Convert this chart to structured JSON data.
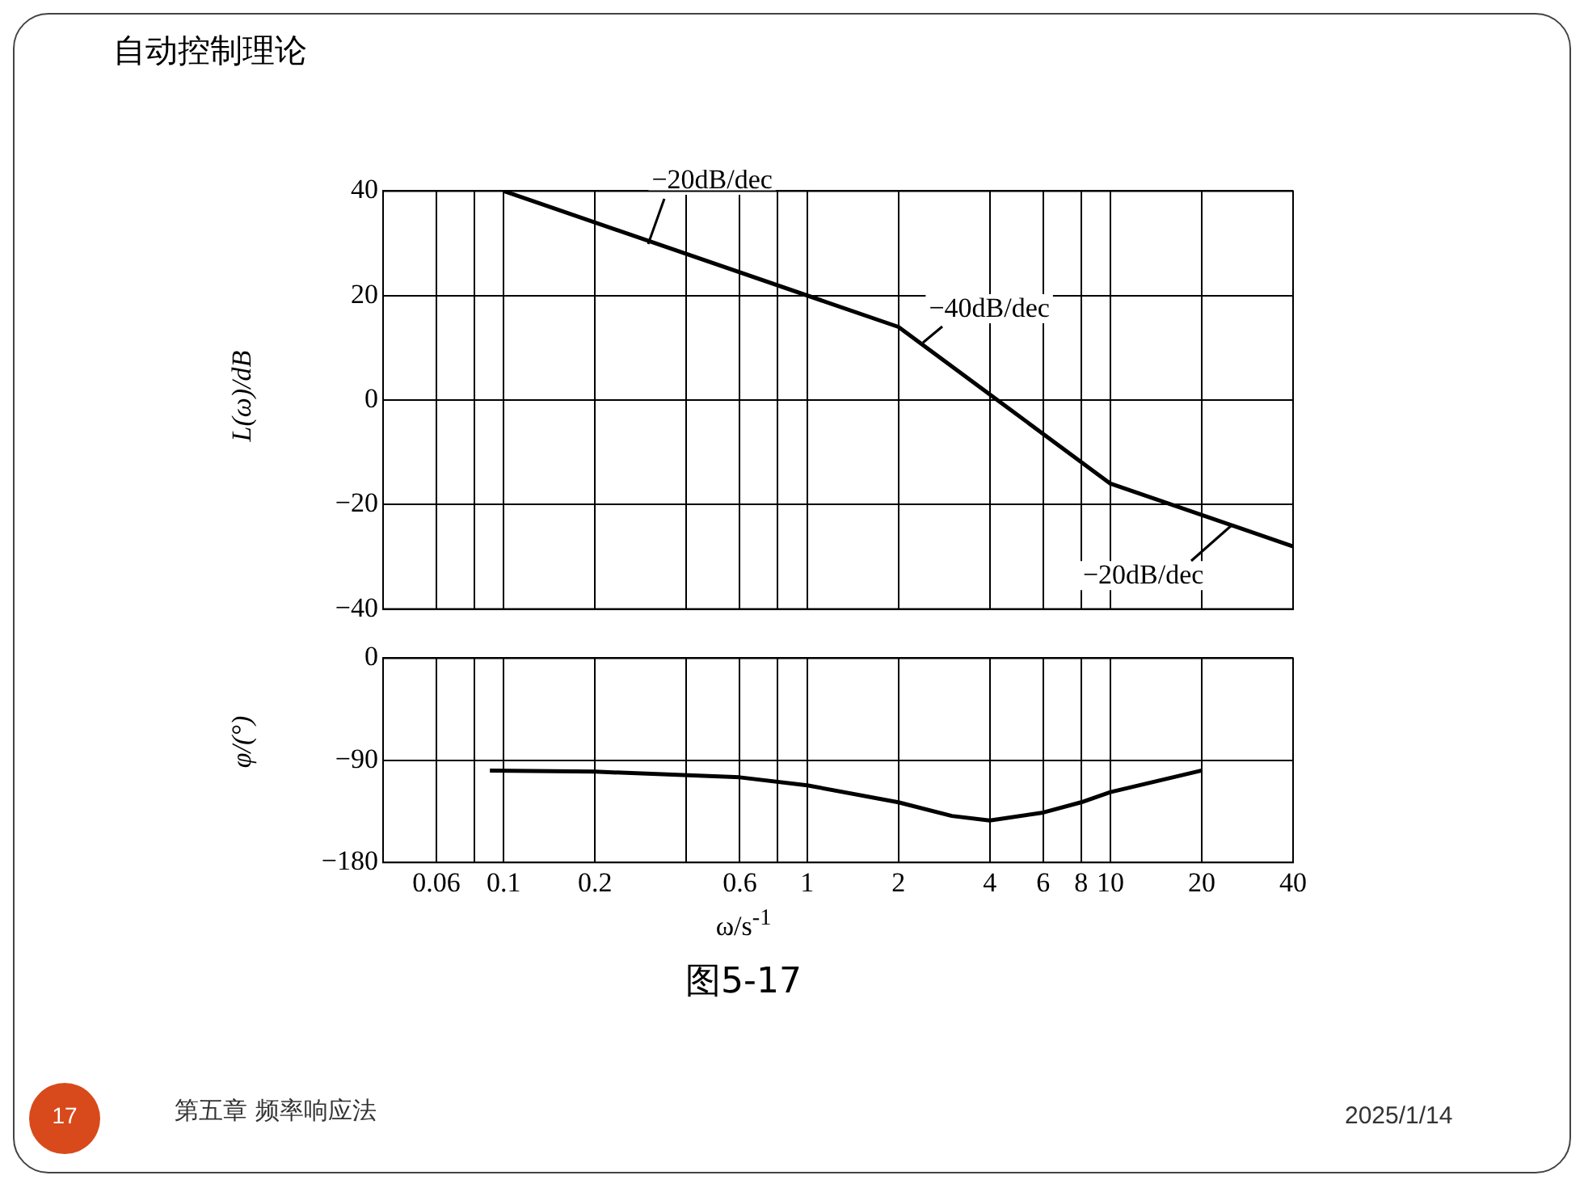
{
  "chart_data": [
    {
      "type": "line",
      "title": "自动控制理论",
      "ylabel": "L(ω)/dB",
      "log": "x",
      "grid": true,
      "legend": false,
      "marker": "none",
      "line_style": "solid",
      "tick_labels": "y",
      "xlim": [
        0.04,
        40
      ],
      "xticks": [
        0.06,
        {
          "value": 0.08,
          "label": null
        },
        0.1,
        0.2,
        {
          "value": 0.4,
          "label": null
        },
        0.6,
        {
          "value": 0.8,
          "label": null
        },
        1,
        2,
        4,
        6,
        8,
        10,
        20,
        40
      ],
      "ylim": [
        -40,
        40
      ],
      "yticks": [
        {
          "value": -40,
          "label": "−40"
        },
        {
          "value": -20,
          "label": "−20"
        },
        0,
        20,
        40
      ],
      "x": [
        0.1,
        2,
        10,
        40
      ],
      "series": [
        {
          "color": "#000000",
          "values": [
            40,
            14,
            -16,
            -28
          ]
        }
      ],
      "annotations": [
        {
          "text": "−20dB/dec",
          "x": 0.3,
          "y": 30
        },
        {
          "text": "−40dB/dec",
          "x": 2.4,
          "y": 11
        },
        {
          "text": "−20dB/dec",
          "x": 25,
          "y": -24
        }
      ]
    },
    {
      "type": "line",
      "xlabel": "ω/s$^{-1}$",
      "ylabel": "φ/(°)",
      "log": "x",
      "grid": true,
      "legend": false,
      "marker": "none",
      "line_style": "solid",
      "xlim": [
        0.04,
        40
      ],
      "xticks": [
        {
          "value": 0.06,
          "label": "0.06"
        },
        {
          "value": 0.08,
          "label": null
        },
        {
          "value": 0.1,
          "label": "0.1"
        },
        {
          "value": 0.2,
          "label": "0.2"
        },
        {
          "value": 0.4,
          "label": null
        },
        {
          "value": 0.6,
          "label": "0.6"
        },
        {
          "value": 0.8,
          "label": null
        },
        {
          "value": 1,
          "label": "1"
        },
        {
          "value": 2,
          "label": "2"
        },
        {
          "value": 4,
          "label": "4"
        },
        {
          "value": 6,
          "label": "6"
        },
        {
          "value": 8,
          "label": "8"
        },
        {
          "value": 10,
          "label": "10"
        },
        {
          "value": 20,
          "label": "20"
        },
        {
          "value": 40,
          "label": "40"
        }
      ],
      "ylim": [
        -180,
        0
      ],
      "yticks": [
        {
          "value": -180,
          "label": "−180"
        },
        {
          "value": -90,
          "label": "−90"
        },
        0
      ],
      "x": [
        0.09,
        0.2,
        0.6,
        1,
        2,
        3,
        4,
        6,
        8,
        10,
        20
      ],
      "series": [
        {
          "color": "#000000",
          "values": [
            -99,
            -100,
            -105,
            -112,
            -127,
            -139,
            -143,
            -136,
            -127,
            -118,
            -99
          ]
        }
      ],
      "annotations": [
        "图5-17",
        "第五章 频率响应法",
        "2025/1/14",
        "17"
      ]
    }
  ]
}
